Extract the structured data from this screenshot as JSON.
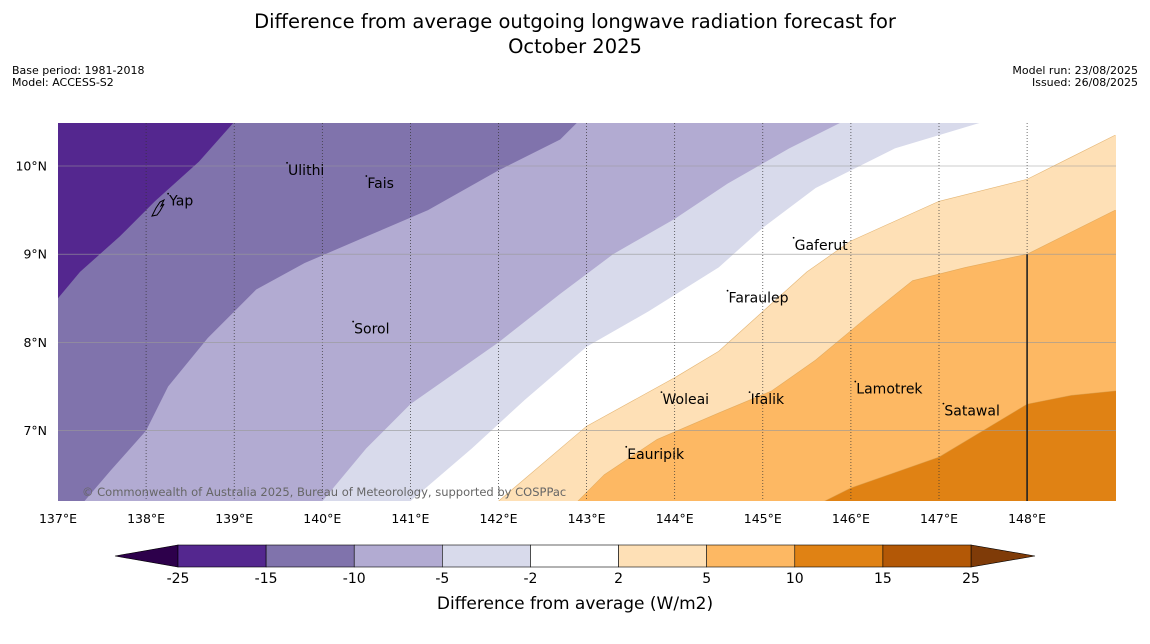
{
  "title_line1": "Difference from average outgoing longwave radiation forecast for",
  "title_line2": "October 2025",
  "meta_left": {
    "base_period": "Base period: 1981-2018",
    "model": "Model: ACCESS-S2"
  },
  "meta_right": {
    "model_run": "Model run: 23/08/2025",
    "issued": "Issued: 26/08/2025"
  },
  "copyright": "© Commonwealth of Australia 2025, Bureau of Meteorology, supported by COSPPac",
  "map": {
    "lon_range": [
      137,
      149
    ],
    "lat_range": [
      6.2,
      10.5
    ],
    "lon_ticks": [
      {
        "v": 137,
        "label": "137°E"
      },
      {
        "v": 138,
        "label": "138°E"
      },
      {
        "v": 139,
        "label": "139°E"
      },
      {
        "v": 140,
        "label": "140°E"
      },
      {
        "v": 141,
        "label": "141°E"
      },
      {
        "v": 142,
        "label": "142°E"
      },
      {
        "v": 143,
        "label": "143°E"
      },
      {
        "v": 144,
        "label": "144°E"
      },
      {
        "v": 145,
        "label": "145°E"
      },
      {
        "v": 146,
        "label": "146°E"
      },
      {
        "v": 147,
        "label": "147°E"
      },
      {
        "v": 148,
        "label": "148°E"
      }
    ],
    "lat_ticks": [
      {
        "v": 10,
        "label": "10°N"
      },
      {
        "v": 9,
        "label": "9°N"
      },
      {
        "v": 8,
        "label": "8°N"
      },
      {
        "v": 7,
        "label": "7°N"
      }
    ],
    "places": [
      {
        "name": "Yap",
        "lon": 138.25,
        "lat": 9.55
      },
      {
        "name": "Ulithi",
        "lon": 139.6,
        "lat": 9.9
      },
      {
        "name": "Fais",
        "lon": 140.5,
        "lat": 9.75
      },
      {
        "name": "Sorol",
        "lon": 140.35,
        "lat": 8.1
      },
      {
        "name": "Gaferut",
        "lon": 145.35,
        "lat": 9.05
      },
      {
        "name": "Faraulep",
        "lon": 144.6,
        "lat": 8.45
      },
      {
        "name": "Woleai",
        "lon": 143.85,
        "lat": 7.3
      },
      {
        "name": "Ifalik",
        "lon": 144.85,
        "lat": 7.3
      },
      {
        "name": "Lamotrek",
        "lon": 146.05,
        "lat": 7.42
      },
      {
        "name": "Satawal",
        "lon": 147.05,
        "lat": 7.17
      },
      {
        "name": "Eauripik",
        "lon": 143.45,
        "lat": 6.68
      }
    ],
    "boundary_line": {
      "lon": 148,
      "lat_from": 6.2,
      "lat_to": 9.0
    },
    "contour_bands": [
      {
        "name": "below -15",
        "color": "#54278f",
        "edge": [
          [
            137,
            8.5
          ],
          [
            137.25,
            8.8
          ],
          [
            137.7,
            9.2
          ],
          [
            138.1,
            9.6
          ],
          [
            138.6,
            10.05
          ],
          [
            139,
            10.5
          ]
        ]
      },
      {
        "name": "-15 to -10",
        "color": "#8073ac",
        "edge": [
          [
            137.3,
            6.2
          ],
          [
            137.6,
            6.55
          ],
          [
            138,
            7.0
          ],
          [
            138.25,
            7.5
          ],
          [
            138.7,
            8.05
          ],
          [
            139.25,
            8.6
          ],
          [
            139.8,
            8.9
          ],
          [
            140.5,
            9.2
          ],
          [
            141.2,
            9.5
          ],
          [
            142,
            9.95
          ],
          [
            142.7,
            10.3
          ],
          [
            142.9,
            10.5
          ]
        ]
      },
      {
        "name": "-10 to -5",
        "color": "#b2abd2",
        "edge": [
          [
            140,
            6.2
          ],
          [
            140.5,
            6.8
          ],
          [
            141,
            7.3
          ],
          [
            141.5,
            7.65
          ],
          [
            142,
            8.0
          ],
          [
            142.7,
            8.55
          ],
          [
            143.3,
            9.0
          ],
          [
            144,
            9.4
          ],
          [
            144.6,
            9.8
          ],
          [
            145.3,
            10.2
          ],
          [
            145.9,
            10.5
          ]
        ]
      },
      {
        "name": "-5 to -2",
        "color": "#d8daeb",
        "edge": [
          [
            141,
            6.2
          ],
          [
            141.7,
            6.8
          ],
          [
            142.3,
            7.35
          ],
          [
            143,
            7.95
          ],
          [
            143.7,
            8.35
          ],
          [
            144.5,
            8.85
          ],
          [
            145,
            9.3
          ],
          [
            145.6,
            9.75
          ],
          [
            146.5,
            10.2
          ],
          [
            147.5,
            10.5
          ]
        ]
      },
      {
        "name": "-2 to 2",
        "color": "#ffffff",
        "edge": [
          [
            142,
            6.2
          ],
          [
            143,
            7.05
          ],
          [
            144,
            7.6
          ],
          [
            144.5,
            7.9
          ],
          [
            145,
            8.35
          ],
          [
            145.5,
            8.8
          ],
          [
            146,
            9.15
          ],
          [
            147,
            9.6
          ],
          [
            148,
            9.85
          ],
          [
            148.5,
            10.1
          ],
          [
            149,
            10.35
          ]
        ]
      },
      {
        "name": "2 to 5",
        "color": "#fee0b6",
        "edge": [
          [
            142.9,
            6.2
          ],
          [
            143.2,
            6.5
          ],
          [
            143.8,
            6.9
          ],
          [
            144.5,
            7.2
          ],
          [
            145.1,
            7.45
          ],
          [
            145.6,
            7.8
          ],
          [
            146.2,
            8.3
          ],
          [
            146.7,
            8.7
          ],
          [
            147.3,
            8.85
          ],
          [
            148,
            9.0
          ],
          [
            148.5,
            9.25
          ],
          [
            149,
            9.5
          ]
        ]
      },
      {
        "name": "5 to 10",
        "color": "#fdb863",
        "edge": [
          [
            145.7,
            6.2
          ],
          [
            146,
            6.35
          ],
          [
            147,
            6.7
          ],
          [
            147.5,
            7.0
          ],
          [
            148,
            7.3
          ],
          [
            148.5,
            7.4
          ],
          [
            149,
            7.45
          ]
        ]
      },
      {
        "name": "10 to 15",
        "color": "#e08214",
        "edge": [
          [
            149,
            6.2
          ]
        ]
      }
    ]
  },
  "colorbar": {
    "label": "Difference from average (W/m2)",
    "tick_labels": [
      "-25",
      "-15",
      "-10",
      "-5",
      "-2",
      "2",
      "5",
      "10",
      "15",
      "25"
    ],
    "colors": [
      "#54278f",
      "#8073ac",
      "#b2abd2",
      "#d8daeb",
      "#ffffff",
      "#fee0b6",
      "#fdb863",
      "#e08214",
      "#b35806"
    ],
    "extend_low": "#2d004b",
    "extend_high": "#7f3b08"
  }
}
